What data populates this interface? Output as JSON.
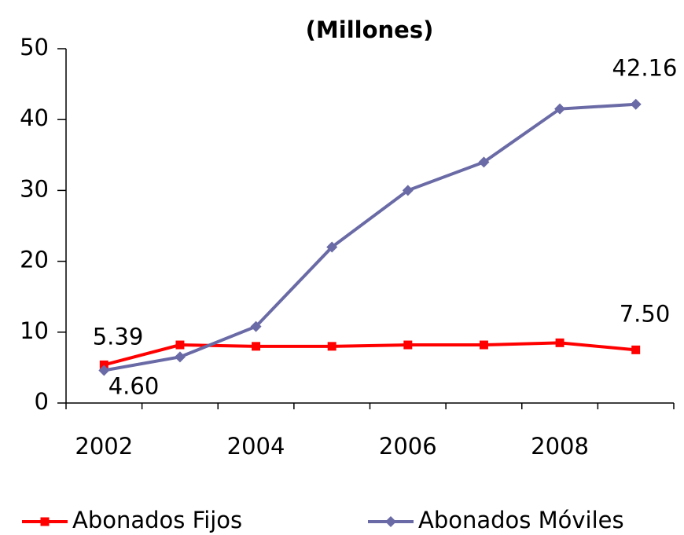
{
  "chart_data": {
    "type": "line",
    "title": "(Millones)",
    "categories": [
      "2002",
      null,
      "2004",
      null,
      "2006",
      null,
      "2008",
      null
    ],
    "series": [
      {
        "name": "Abonados Fijos",
        "color": "#ff0000",
        "marker": "square",
        "values": [
          5.39,
          8.2,
          8.0,
          8.0,
          8.2,
          8.2,
          8.5,
          7.5
        ],
        "value_labels": [
          "5.39",
          null,
          null,
          null,
          null,
          null,
          null,
          "7.50"
        ]
      },
      {
        "name": "Abonados Móviles",
        "color": "#6a6aa6",
        "marker": "diamond",
        "values": [
          4.6,
          6.5,
          10.8,
          22.0,
          30.0,
          34.0,
          41.5,
          42.16
        ],
        "value_labels": [
          "4.60",
          null,
          null,
          null,
          null,
          null,
          null,
          "42.16"
        ]
      }
    ],
    "ylim": [
      0,
      50
    ],
    "yticks": [
      0,
      10,
      20,
      30,
      40,
      50
    ],
    "legend": "bottom"
  }
}
